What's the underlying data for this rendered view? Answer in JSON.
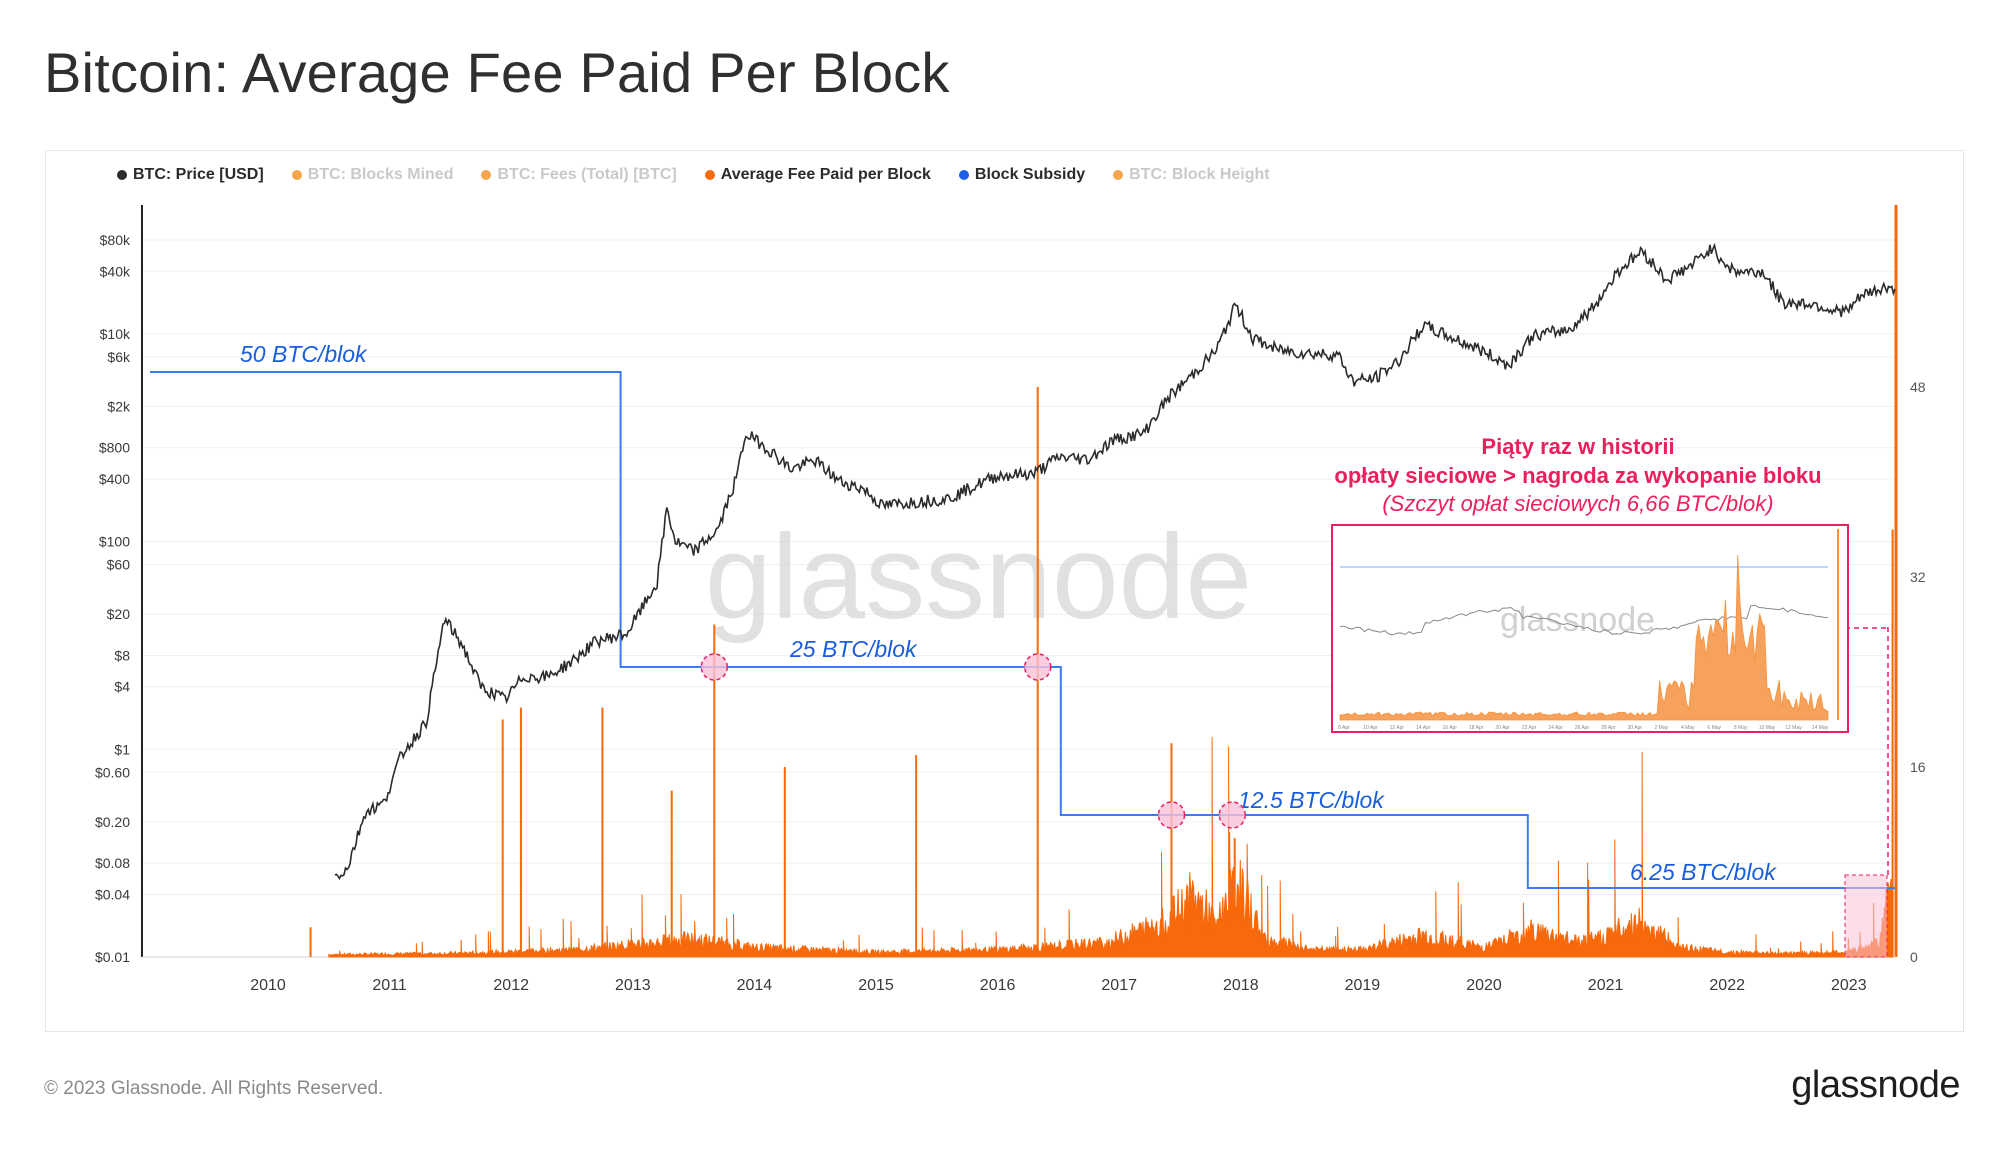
{
  "title": "Bitcoin: Average Fee Paid Per Block",
  "legend": [
    {
      "label": "BTC: Price [USD]",
      "color": "#2b2b2b",
      "active": true
    },
    {
      "label": "BTC: Blocks Mined",
      "color": "#f5a54a",
      "active": false
    },
    {
      "label": "BTC: Fees (Total) [BTC]",
      "color": "#f5a54a",
      "active": false
    },
    {
      "label": "Average Fee Paid per Block",
      "color": "#f7690a",
      "active": true
    },
    {
      "label": "Block Subsidy",
      "color": "#1c5fe6",
      "active": true
    },
    {
      "label": "BTC: Block Height",
      "color": "#f5a54a",
      "active": false
    }
  ],
  "chart_data": {
    "type": "line",
    "x_ticks": [
      "2010",
      "2011",
      "2012",
      "2013",
      "2014",
      "2015",
      "2016",
      "2017",
      "2018",
      "2019",
      "2020",
      "2021",
      "2022",
      "2023"
    ],
    "y_left_scale": "log",
    "y_left_ticks": [
      "$80k",
      "$40k",
      "$10k",
      "$6k",
      "$2k",
      "$800",
      "$400",
      "$100",
      "$60",
      "$20",
      "$8",
      "$4",
      "$1",
      "$0.60",
      "$0.20",
      "$0.08",
      "$0.04",
      "$0.01"
    ],
    "y_right_ticks": [
      "48",
      "32",
      "16",
      "0"
    ],
    "y_right_range": [
      0,
      64
    ],
    "grid": true,
    "legend_position": "top-left",
    "series": [
      {
        "name": "BTC: Price [USD]",
        "color": "#2b2b2b",
        "points": [
          [
            2010.55,
            0.06
          ],
          [
            2010.65,
            0.07
          ],
          [
            2010.8,
            0.25
          ],
          [
            2010.95,
            0.3
          ],
          [
            2011.1,
            0.9
          ],
          [
            2011.3,
            1.8
          ],
          [
            2011.45,
            18
          ],
          [
            2011.6,
            10
          ],
          [
            2011.75,
            4
          ],
          [
            2011.95,
            3
          ],
          [
            2012.1,
            5
          ],
          [
            2012.3,
            5
          ],
          [
            2012.5,
            7
          ],
          [
            2012.7,
            11
          ],
          [
            2012.95,
            13
          ],
          [
            2013.2,
            40
          ],
          [
            2013.28,
            210
          ],
          [
            2013.35,
            100
          ],
          [
            2013.5,
            80
          ],
          [
            2013.7,
            130
          ],
          [
            2013.85,
            400
          ],
          [
            2013.93,
            1100
          ],
          [
            2014.1,
            800
          ],
          [
            2014.3,
            500
          ],
          [
            2014.5,
            600
          ],
          [
            2014.7,
            380
          ],
          [
            2014.9,
            320
          ],
          [
            2015.05,
            220
          ],
          [
            2015.3,
            240
          ],
          [
            2015.6,
            260
          ],
          [
            2015.85,
            360
          ],
          [
            2016.0,
            430
          ],
          [
            2016.3,
            450
          ],
          [
            2016.5,
            650
          ],
          [
            2016.75,
            620
          ],
          [
            2016.95,
            950
          ],
          [
            2017.2,
            1100
          ],
          [
            2017.4,
            2400
          ],
          [
            2017.6,
            4000
          ],
          [
            2017.8,
            7000
          ],
          [
            2017.96,
            19000
          ],
          [
            2018.1,
            9000
          ],
          [
            2018.3,
            7000
          ],
          [
            2018.55,
            6500
          ],
          [
            2018.8,
            6300
          ],
          [
            2018.92,
            3500
          ],
          [
            2019.1,
            3700
          ],
          [
            2019.3,
            5500
          ],
          [
            2019.5,
            12000
          ],
          [
            2019.7,
            9500
          ],
          [
            2019.95,
            7200
          ],
          [
            2020.2,
            5000
          ],
          [
            2020.4,
            9500
          ],
          [
            2020.7,
            11000
          ],
          [
            2020.9,
            18000
          ],
          [
            2021.1,
            40000
          ],
          [
            2021.3,
            63000
          ],
          [
            2021.5,
            33000
          ],
          [
            2021.7,
            45000
          ],
          [
            2021.87,
            67000
          ],
          [
            2022.05,
            40000
          ],
          [
            2022.3,
            39000
          ],
          [
            2022.45,
            20000
          ],
          [
            2022.7,
            19500
          ],
          [
            2022.9,
            16500
          ],
          [
            2023.0,
            16800
          ],
          [
            2023.1,
            23000
          ],
          [
            2023.3,
            28000
          ],
          [
            2023.38,
            27000
          ]
        ]
      },
      {
        "name": "Block Subsidy",
        "color": "#1c5fe6",
        "steps": [
          {
            "from": 2009.0,
            "to": 2012.9,
            "value": 50
          },
          {
            "from": 2012.9,
            "to": 2016.52,
            "value": 25
          },
          {
            "from": 2016.52,
            "to": 2020.36,
            "value": 12.5
          },
          {
            "from": 2020.36,
            "to": 2023.38,
            "value": 6.25
          }
        ],
        "labels": [
          "50 BTC/blok",
          "25 BTC/blok",
          "12.5 BTC/blok",
          "6.25 BTC/blok"
        ]
      },
      {
        "name": "Average Fee Paid per Block",
        "color": "#f7690a",
        "spikes": [
          [
            2010.35,
            2.5
          ],
          [
            2011.93,
            20
          ],
          [
            2012.08,
            21
          ],
          [
            2012.75,
            21
          ],
          [
            2013.32,
            14
          ],
          [
            2013.67,
            28
          ],
          [
            2014.25,
            16
          ],
          [
            2015.33,
            17
          ],
          [
            2016.33,
            48
          ],
          [
            2017.43,
            18
          ],
          [
            2017.95,
            10
          ],
          [
            2023.36,
            36
          ]
        ],
        "baseline": [
          [
            2010.5,
            0.2
          ],
          [
            2011.5,
            0.3
          ],
          [
            2012.5,
            0.6
          ],
          [
            2013.5,
            1.5
          ],
          [
            2014.0,
            0.8
          ],
          [
            2015.0,
            0.4
          ],
          [
            2016.0,
            0.6
          ],
          [
            2016.9,
            1.2
          ],
          [
            2017.4,
            3
          ],
          [
            2017.6,
            5
          ],
          [
            2017.8,
            3
          ],
          [
            2017.97,
            6
          ],
          [
            2018.2,
            1.5
          ],
          [
            2018.6,
            0.6
          ],
          [
            2019.0,
            0.6
          ],
          [
            2019.5,
            1.8
          ],
          [
            2020.0,
            0.8
          ],
          [
            2020.4,
            2.2
          ],
          [
            2020.8,
            1.2
          ],
          [
            2021.0,
            1.8
          ],
          [
            2021.3,
            3
          ],
          [
            2021.6,
            0.8
          ],
          [
            2022.0,
            0.4
          ],
          [
            2022.5,
            0.3
          ],
          [
            2023.0,
            0.4
          ],
          [
            2023.25,
            1.2
          ],
          [
            2023.36,
            6.66
          ]
        ]
      }
    ],
    "annotations": [
      "Piąty raz w historii",
      "opłaty sieciowe > nagroda za wykopanie bloku",
      "(Szczyt opłat sieciowych 6,66 BTC/blok)"
    ],
    "inset_x_ticks": [
      "8 Apr",
      "10 Apr",
      "12 Apr",
      "14 Apr",
      "16 Apr",
      "18 Apr",
      "20 Apr",
      "22 Apr",
      "24 Apr",
      "26 Apr",
      "28 Apr",
      "30 Apr",
      "2 May",
      "4 May",
      "6 May",
      "8 May",
      "10 May",
      "12 May",
      "14 May"
    ]
  },
  "watermark": "glassnode",
  "footer": {
    "copyright": "© 2023 Glassnode. All Rights Reserved.",
    "brand": "glassnode"
  }
}
